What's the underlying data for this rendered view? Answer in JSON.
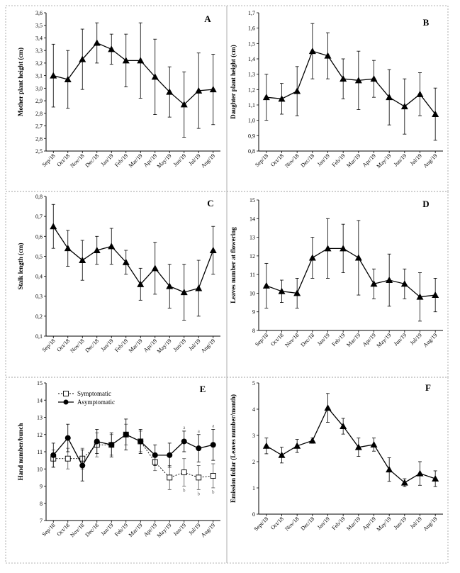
{
  "chart_data": [
    {
      "panel": "A",
      "type": "line",
      "ylabel": "Mother plant height (cm)",
      "ylim": [
        2.5,
        3.6
      ],
      "yticks": [
        "2,5",
        "2,6",
        "2,7",
        "2,8",
        "2,9",
        "3,0",
        "3,1",
        "3,2",
        "3,3",
        "3,4",
        "3,5",
        "3,6"
      ],
      "categories": [
        "Sep/18",
        "Oct/18",
        "Nov/18",
        "Dec/18",
        "Jan/19",
        "Feb/19",
        "Mar/19",
        "Apr/19",
        "May/19",
        "Jun/19",
        "Jul/19",
        "Aug/19"
      ],
      "series": [
        {
          "name": "Mother plant height",
          "marker": "triangle",
          "values": [
            3.1,
            3.07,
            3.23,
            3.36,
            3.31,
            3.22,
            3.22,
            3.09,
            2.97,
            2.87,
            2.98,
            2.99
          ],
          "errors": [
            0.25,
            0.23,
            0.24,
            0.16,
            0.12,
            0.21,
            0.3,
            0.3,
            0.2,
            0.26,
            0.3,
            0.28
          ]
        }
      ]
    },
    {
      "panel": "B",
      "type": "line",
      "ylabel": "Daughter plant height (cm)",
      "ylim": [
        0.8,
        1.7
      ],
      "yticks": [
        "0,8",
        "0,9",
        "1,0",
        "1,1",
        "1,2",
        "1,3",
        "1,4",
        "1,5",
        "1,6",
        "1,7"
      ],
      "categories": [
        "Sep/18",
        "Oct/18",
        "Nov/18",
        "Dec/18",
        "Jan/19",
        "Feb/19",
        "Mar/19",
        "Apr/19",
        "May/19",
        "Jun/19",
        "Jul/19",
        "Aug/19"
      ],
      "series": [
        {
          "name": "Daughter plant height",
          "marker": "triangle",
          "values": [
            1.15,
            1.14,
            1.19,
            1.45,
            1.42,
            1.27,
            1.26,
            1.27,
            1.15,
            1.09,
            1.17,
            1.04
          ],
          "errors": [
            0.15,
            0.1,
            0.16,
            0.18,
            0.15,
            0.13,
            0.19,
            0.12,
            0.18,
            0.18,
            0.14,
            0.17
          ]
        }
      ]
    },
    {
      "panel": "C",
      "type": "line",
      "ylabel": "Stalk length (cm)",
      "ylim": [
        0.1,
        0.8
      ],
      "yticks": [
        "0,1",
        "0,2",
        "0,3",
        "0,4",
        "0,5",
        "0,6",
        "0,7",
        "0,8"
      ],
      "categories": [
        "Sep/18",
        "Oct/18",
        "Nov/18",
        "Dec/18",
        "Jan/19",
        "Feb/19",
        "Mar/19",
        "Apr/19",
        "May/19",
        "Jun/19",
        "Jul/19",
        "Aug/19"
      ],
      "series": [
        {
          "name": "Stalk length",
          "marker": "triangle",
          "values": [
            0.65,
            0.54,
            0.48,
            0.53,
            0.55,
            0.47,
            0.36,
            0.44,
            0.35,
            0.32,
            0.34,
            0.53
          ],
          "errors": [
            0.11,
            0.09,
            0.1,
            0.07,
            0.09,
            0.06,
            0.08,
            0.13,
            0.11,
            0.14,
            0.14,
            0.12
          ]
        }
      ]
    },
    {
      "panel": "D",
      "type": "line",
      "ylabel": "Leaves number at flowering",
      "ylim": [
        8,
        15
      ],
      "yticks": [
        "8",
        "9",
        "10",
        "11",
        "12",
        "13",
        "14",
        "15"
      ],
      "categories": [
        "Sep/18",
        "Oct/18",
        "Nov/18",
        "Dec/18",
        "Jan/19",
        "Feb/19",
        "Mar/19",
        "Apr/19",
        "May/19",
        "Jun/19",
        "Jul/19",
        "Aug/19"
      ],
      "series": [
        {
          "name": "Leaves number at flowering",
          "marker": "triangle",
          "values": [
            10.4,
            10.1,
            10.0,
            11.9,
            12.4,
            12.4,
            11.9,
            10.5,
            10.7,
            10.5,
            9.8,
            9.9
          ],
          "errors": [
            1.2,
            0.6,
            0.8,
            1.1,
            1.6,
            1.3,
            2.0,
            0.8,
            1.4,
            0.8,
            1.3,
            0.9
          ]
        }
      ]
    },
    {
      "panel": "E",
      "type": "line",
      "ylabel": "Hand number/bunch",
      "ylim": [
        7,
        15
      ],
      "yticks": [
        "7",
        "8",
        "9",
        "10",
        "11",
        "12",
        "13",
        "14",
        "15"
      ],
      "categories": [
        "Sep/18",
        "Oct/18",
        "Nov/18",
        "Dec/18",
        "Jan/19",
        "Feb/19",
        "Mar/19",
        "Apr/19",
        "May/19",
        "Jun/19",
        "Jul/19",
        "Aug/19"
      ],
      "legend": [
        "Symptomatic",
        "Asymptomatic"
      ],
      "series": [
        {
          "name": "Symptomatic",
          "marker": "open-square",
          "values": [
            10.6,
            10.6,
            10.6,
            11.4,
            11.4,
            12.0,
            11.6,
            10.4,
            9.5,
            9.8,
            9.5,
            9.6
          ],
          "errors": [
            0.5,
            0.6,
            0.6,
            0.7,
            0.6,
            0.6,
            0.6,
            0.5,
            0.7,
            0.8,
            0.7,
            0.7
          ]
        },
        {
          "name": "Asymptomatic",
          "marker": "filled-circle",
          "values": [
            10.8,
            11.8,
            10.2,
            11.6,
            11.4,
            12.0,
            11.6,
            10.8,
            10.8,
            11.6,
            11.2,
            11.4
          ],
          "errors": [
            0.7,
            0.8,
            0.9,
            0.7,
            0.7,
            0.9,
            0.7,
            0.6,
            0.7,
            0.6,
            0.8,
            0.9
          ]
        }
      ],
      "significance": [
        {
          "category": "Jun/19",
          "upper": "a",
          "lower": "b"
        },
        {
          "category": "Jul/19",
          "upper": "a",
          "lower": "b"
        },
        {
          "category": "Aug/19",
          "upper": "a",
          "lower": "b"
        }
      ]
    },
    {
      "panel": "F",
      "type": "line",
      "ylabel": "Emission foliar (Leaves number/month)",
      "ylim": [
        0,
        5
      ],
      "yticks": [
        "0",
        "1",
        "2",
        "3",
        "4",
        "5"
      ],
      "categories": [
        "Sept/18",
        "Oct/18",
        "Nov/18",
        "Dec/18",
        "Jan/19",
        "Feb/19",
        "Mar/19",
        "Apr/19",
        "May/19",
        "Jun/19",
        "Jul/19",
        "Aug/19"
      ],
      "series": [
        {
          "name": "Emission foliar",
          "marker": "triangle",
          "values": [
            2.6,
            2.25,
            2.6,
            2.8,
            4.05,
            3.35,
            2.55,
            2.65,
            1.7,
            1.2,
            1.55,
            1.35
          ],
          "errors": [
            0.3,
            0.3,
            0.25,
            0.1,
            0.55,
            0.3,
            0.35,
            0.25,
            0.45,
            0.15,
            0.45,
            0.3
          ]
        }
      ]
    }
  ]
}
